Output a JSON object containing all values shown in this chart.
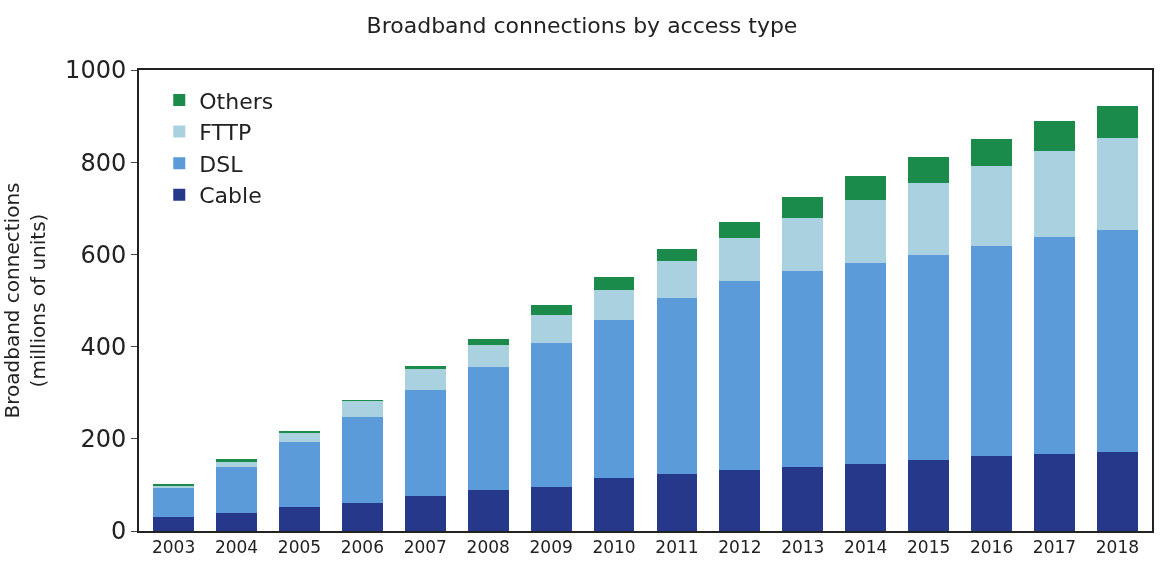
{
  "chart_data": {
    "type": "bar",
    "title": "Broadband connections by access type",
    "ylabel": "Broadband connections\n(millions of units)",
    "categories": [
      "2003",
      "2004",
      "2005",
      "2006",
      "2007",
      "2008",
      "2009",
      "2010",
      "2011",
      "2012",
      "2013",
      "2014",
      "2015",
      "2016",
      "2017",
      "2018"
    ],
    "stacked": true,
    "ylim": [
      0,
      1000
    ],
    "yticks": [
      0,
      200,
      400,
      600,
      800,
      1000
    ],
    "legend": "top left",
    "series": [
      {
        "name": "Cable",
        "color": "#26388a",
        "values": [
          31,
          40,
          52,
          61,
          75,
          88,
          95,
          114,
          124,
          133,
          138,
          146,
          154,
          163,
          167,
          172
        ]
      },
      {
        "name": "DSL",
        "color": "#5b9bd9",
        "values": [
          62,
          99,
          141,
          187,
          231,
          268,
          313,
          343,
          381,
          409,
          426,
          435,
          445,
          455,
          471,
          480
        ]
      },
      {
        "name": "FTTP",
        "color": "#a9d1e0",
        "values": [
          5,
          10,
          21,
          34,
          46,
          48,
          61,
          66,
          80,
          93,
          114,
          138,
          155,
          174,
          186,
          201
        ]
      },
      {
        "name": "Others",
        "color": "#1b8b4b",
        "values": [
          5,
          8,
          2,
          2,
          6,
          12,
          21,
          29,
          27,
          36,
          46,
          50,
          57,
          58,
          66,
          70
        ]
      }
    ]
  }
}
